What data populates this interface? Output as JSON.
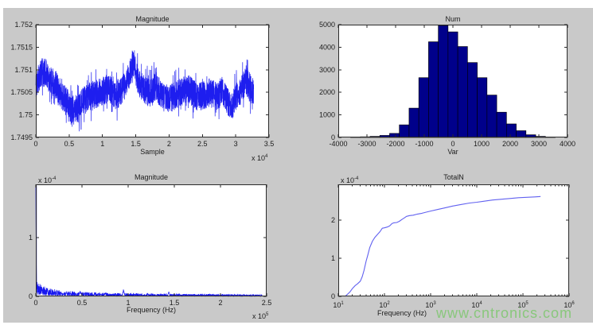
{
  "figure": {
    "background_color": "#c9c9c9",
    "page_color": "#ffffff"
  },
  "watermark": {
    "text": "www.cntronics.com",
    "color": "#86c778"
  },
  "chart_data": [
    {
      "type": "line",
      "title": "Magnitude",
      "xlabel": "Sample",
      "x_scale": "linear",
      "xlim": [
        0,
        35000
      ],
      "ylim": [
        1.7495,
        1.752
      ],
      "x_ticks": [
        0,
        5000,
        10000,
        15000,
        20000,
        25000,
        30000,
        35000
      ],
      "x_tick_labels": [
        "0",
        "0.5",
        "1",
        "1.5",
        "2",
        "2.5",
        "3",
        "3.5"
      ],
      "x_exponent_base": "x 10",
      "x_exponent": "4",
      "y_ticks": [
        1.7495,
        1.75,
        1.7505,
        1.751,
        1.7515,
        1.752
      ],
      "y_tick_labels": [
        "1.7495",
        "1.75",
        "1.7505",
        "1.751",
        "1.7515",
        "1.752"
      ],
      "line_color": "#0b0bee",
      "signal": {
        "x_end": 32700,
        "points": 2600,
        "noise_amp": 0.00032,
        "seed": 11,
        "trend_anchors": [
          [
            0,
            1.75065
          ],
          [
            500,
            1.75085
          ],
          [
            1000,
            1.75095
          ],
          [
            1500,
            1.75093
          ],
          [
            2000,
            1.7508
          ],
          [
            3000,
            1.75068
          ],
          [
            4000,
            1.7504
          ],
          [
            5000,
            1.75022
          ],
          [
            5500,
            1.75
          ],
          [
            6000,
            1.75012
          ],
          [
            7000,
            1.75028
          ],
          [
            8000,
            1.75042
          ],
          [
            9000,
            1.75045
          ],
          [
            10000,
            1.75052
          ],
          [
            11000,
            1.75058
          ],
          [
            12000,
            1.75042
          ],
          [
            13000,
            1.75055
          ],
          [
            14000,
            1.75085
          ],
          [
            14500,
            1.75115
          ],
          [
            15000,
            1.75095
          ],
          [
            15500,
            1.75068
          ],
          [
            16000,
            1.7506
          ],
          [
            17000,
            1.75048
          ],
          [
            18000,
            1.75065
          ],
          [
            19000,
            1.7504
          ],
          [
            20000,
            1.75035
          ],
          [
            21000,
            1.75045
          ],
          [
            22000,
            1.75052
          ],
          [
            23000,
            1.75058
          ],
          [
            24000,
            1.7504
          ],
          [
            25000,
            1.75042
          ],
          [
            26000,
            1.7505
          ],
          [
            27000,
            1.75042
          ],
          [
            28000,
            1.7505
          ],
          [
            29000,
            1.75025
          ],
          [
            29500,
            1.75022
          ],
          [
            30000,
            1.7504
          ],
          [
            31000,
            1.75058
          ],
          [
            31500,
            1.7508
          ],
          [
            32000,
            1.75062
          ],
          [
            32700,
            1.7505
          ]
        ]
      }
    },
    {
      "type": "histogram",
      "title": "Num",
      "xlabel": "Var",
      "x_scale": "linear",
      "xlim": [
        -4000,
        4000
      ],
      "ylim": [
        0,
        5000
      ],
      "x_ticks": [
        -4000,
        -3000,
        -2000,
        -1000,
        0,
        1000,
        2000,
        3000,
        4000
      ],
      "x_tick_labels": [
        "-4000",
        "-3000",
        "-2000",
        "-1000",
        "0",
        "1000",
        "2000",
        "3000",
        "4000"
      ],
      "y_ticks": [
        0,
        1000,
        2000,
        3000,
        4000,
        5000
      ],
      "y_tick_labels": [
        "0",
        "1000",
        "2000",
        "3000",
        "4000",
        "5000"
      ],
      "bar_color": "#00008b",
      "bar_edge_color": "#000000",
      "bin_start": -3570,
      "bin_width": 340,
      "counts": [
        15,
        30,
        50,
        90,
        180,
        560,
        1300,
        2650,
        4240,
        4960,
        4680,
        4030,
        3320,
        2650,
        1880,
        1120,
        600,
        300,
        120,
        50,
        25
      ]
    },
    {
      "type": "spectrum",
      "title": "Magnitude",
      "xlabel": "Frequency (Hz)",
      "x_scale": "linear",
      "xlim": [
        0,
        250000
      ],
      "ylim": [
        0,
        1.9
      ],
      "x_ticks": [
        0,
        50000,
        100000,
        150000,
        200000,
        250000
      ],
      "x_tick_labels": [
        "0",
        "0.5",
        "1",
        "1.5",
        "2",
        "2.5"
      ],
      "x_exponent_base": "x 10",
      "x_exponent": "5",
      "y_ticks": [
        0,
        1
      ],
      "y_tick_labels": [
        "0",
        "1"
      ],
      "y_exponent_base": "x 10",
      "y_exponent": "-4",
      "y_unit": 0.0001,
      "line_color": "#0b0bee",
      "spike": {
        "x": 0,
        "height": 1.88
      },
      "noise": {
        "points": 1500,
        "x_end": 245000,
        "seed": 5,
        "envelope_anchors": [
          [
            0,
            0.3
          ],
          [
            5000,
            0.2
          ],
          [
            12000,
            0.15
          ],
          [
            25000,
            0.11
          ],
          [
            40000,
            0.085
          ],
          [
            60000,
            0.07
          ],
          [
            90000,
            0.055
          ],
          [
            120000,
            0.05
          ],
          [
            160000,
            0.042
          ],
          [
            200000,
            0.038
          ],
          [
            245000,
            0.032
          ]
        ],
        "spikes": [
          [
            33000,
            0.09
          ],
          [
            48000,
            0.12
          ],
          [
            95000,
            0.14
          ],
          [
            144000,
            0.1
          ]
        ]
      }
    },
    {
      "type": "logline",
      "title": "TotalN",
      "xlabel": "Frequency (Hz)",
      "x_scale": "log",
      "xlim": [
        10,
        1000000
      ],
      "ylim": [
        0,
        2.94
      ],
      "x_ticks": [
        10,
        100,
        1000,
        10000,
        100000,
        1000000
      ],
      "x_tick_exponents": [
        "1",
        "2",
        "3",
        "4",
        "5",
        "6"
      ],
      "y_ticks": [
        0,
        1,
        2
      ],
      "y_tick_labels": [
        "0",
        "1",
        "2"
      ],
      "y_exponent_base": "x 10",
      "y_exponent": "-4",
      "y_unit": 0.0001,
      "line_color": "#6161f0",
      "points": [
        [
          14,
          0
        ],
        [
          16,
          0.06
        ],
        [
          18,
          0.12
        ],
        [
          20,
          0.2
        ],
        [
          23,
          0.28
        ],
        [
          26,
          0.33
        ],
        [
          30,
          0.4
        ],
        [
          33,
          0.52
        ],
        [
          36,
          0.68
        ],
        [
          40,
          0.92
        ],
        [
          44,
          1.1
        ],
        [
          48,
          1.28
        ],
        [
          55,
          1.45
        ],
        [
          62,
          1.55
        ],
        [
          70,
          1.62
        ],
        [
          80,
          1.7
        ],
        [
          90,
          1.79
        ],
        [
          100,
          1.8
        ],
        [
          115,
          1.82
        ],
        [
          130,
          1.85
        ],
        [
          145,
          1.91
        ],
        [
          160,
          1.93
        ],
        [
          185,
          1.94
        ],
        [
          210,
          1.97
        ],
        [
          240,
          2.02
        ],
        [
          270,
          2.06
        ],
        [
          300,
          2.1
        ],
        [
          350,
          2.12
        ],
        [
          420,
          2.13
        ],
        [
          520,
          2.16
        ],
        [
          650,
          2.18
        ],
        [
          800,
          2.21
        ],
        [
          1000,
          2.24
        ],
        [
          1400,
          2.28
        ],
        [
          2000,
          2.32
        ],
        [
          3000,
          2.37
        ],
        [
          4500,
          2.41
        ],
        [
          7000,
          2.45
        ],
        [
          10000,
          2.47
        ],
        [
          15000,
          2.5
        ],
        [
          22000,
          2.53
        ],
        [
          35000,
          2.55
        ],
        [
          55000,
          2.57
        ],
        [
          80000,
          2.59
        ],
        [
          120000,
          2.6
        ],
        [
          180000,
          2.61
        ],
        [
          240000,
          2.62
        ]
      ]
    }
  ]
}
